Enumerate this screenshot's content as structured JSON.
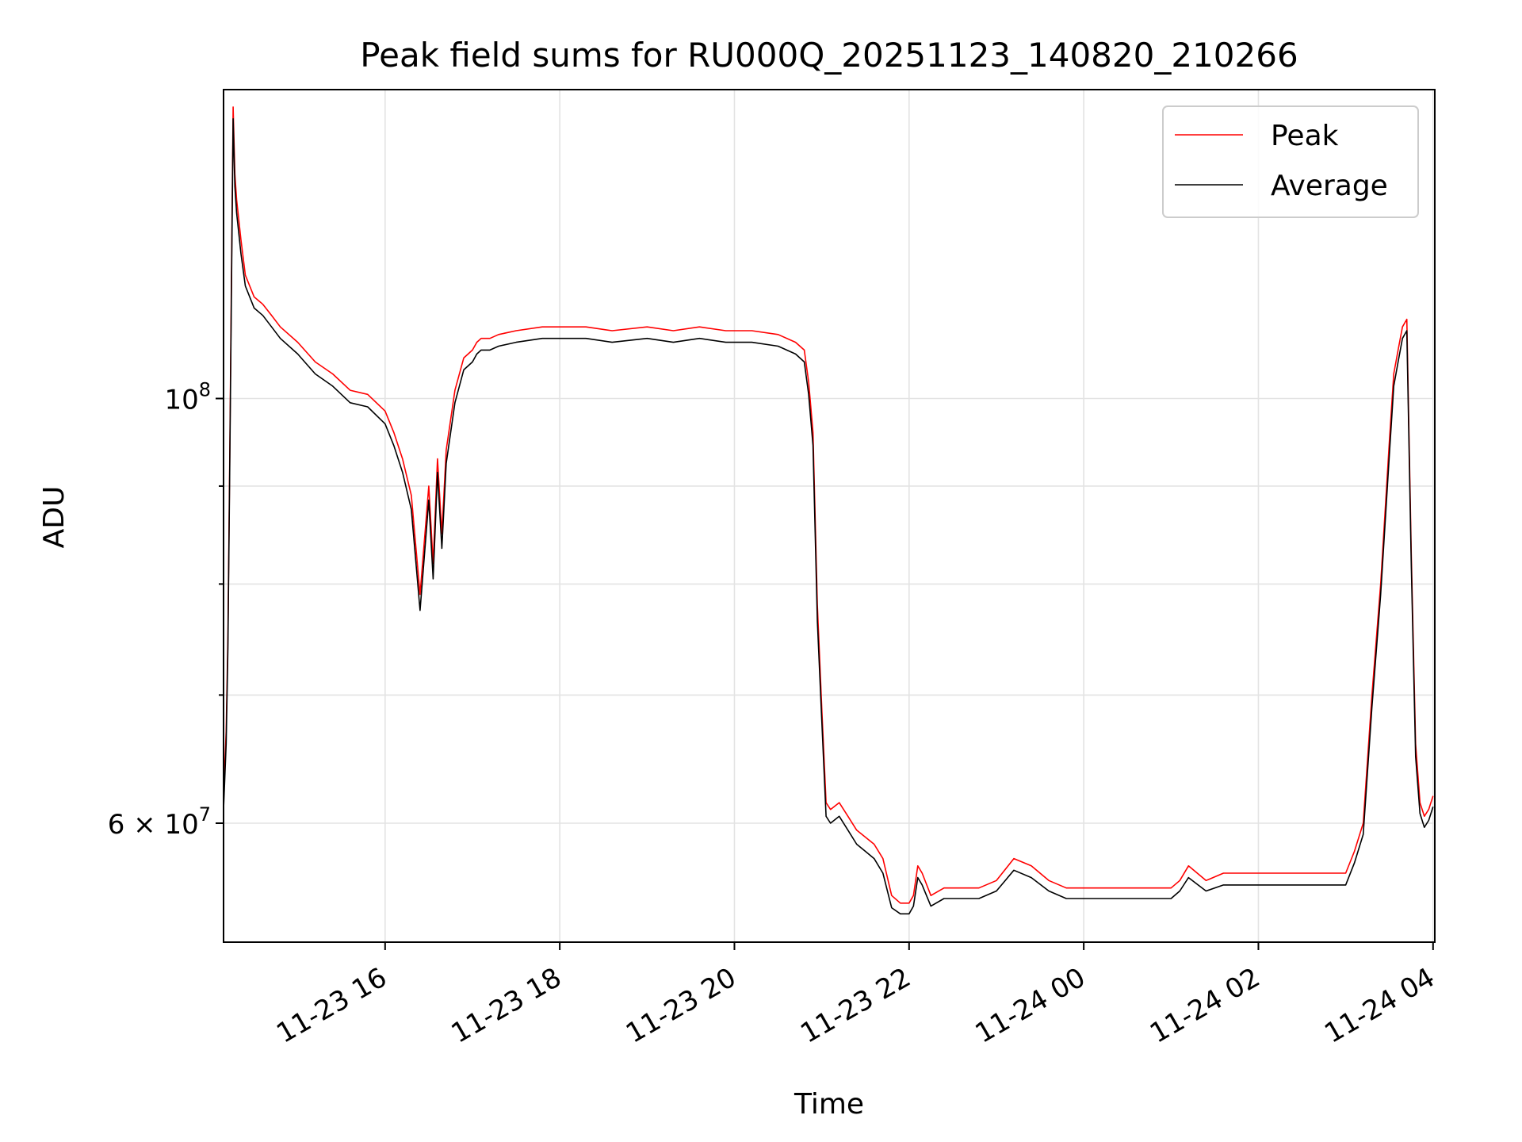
{
  "chart_data": {
    "type": "line",
    "title": "Peak field sums for RU000Q_20251123_140820_210266",
    "xlabel": "Time",
    "ylabel": "ADU",
    "yscale": "log",
    "xlim_hours": [
      -1.85,
      12.02
    ],
    "ylim": [
      52000000,
      145000000
    ],
    "x_units": "hours since 2025-11-23 16:00",
    "x_ticks": [
      {
        "value": 0,
        "label": "11-23 16"
      },
      {
        "value": 2,
        "label": "11-23 18"
      },
      {
        "value": 4,
        "label": "11-23 20"
      },
      {
        "value": 6,
        "label": "11-23 22"
      },
      {
        "value": 8,
        "label": "11-24 00"
      },
      {
        "value": 10,
        "label": "11-24 02"
      },
      {
        "value": 12,
        "label": "11-24 04"
      }
    ],
    "y_major_ticks": [
      {
        "value": 60000000,
        "base": "6",
        "mult": "×",
        "exp_base": "10",
        "exp": "7"
      },
      {
        "value": 100000000,
        "base": "",
        "mult": "",
        "exp_base": "10",
        "exp": "8"
      }
    ],
    "y_minor_ticks": [
      70000000,
      80000000,
      90000000
    ],
    "grid": true,
    "legend_position": "top-right",
    "series": [
      {
        "name": "Peak",
        "color": "#ff0000",
        "x": [
          -1.85,
          -1.82,
          -1.8,
          -1.78,
          -1.76,
          -1.74,
          -1.72,
          -1.7,
          -1.65,
          -1.6,
          -1.5,
          -1.4,
          -1.3,
          -1.2,
          -1.0,
          -0.8,
          -0.6,
          -0.4,
          -0.2,
          0.0,
          0.1,
          0.2,
          0.3,
          0.4,
          0.5,
          0.55,
          0.6,
          0.65,
          0.7,
          0.8,
          0.9,
          1.0,
          1.05,
          1.1,
          1.2,
          1.3,
          1.5,
          1.8,
          2.0,
          2.3,
          2.6,
          3.0,
          3.3,
          3.6,
          3.9,
          4.2,
          4.5,
          4.7,
          4.8,
          4.85,
          4.9,
          4.95,
          5.0,
          5.05,
          5.1,
          5.2,
          5.3,
          5.4,
          5.5,
          5.6,
          5.7,
          5.8,
          5.9,
          6.0,
          6.05,
          6.1,
          6.15,
          6.25,
          6.4,
          6.6,
          6.8,
          7.0,
          7.2,
          7.4,
          7.6,
          7.8,
          8.0,
          8.2,
          8.4,
          8.6,
          8.8,
          9.0,
          9.1,
          9.2,
          9.4,
          9.6,
          9.8,
          10.0,
          10.2,
          10.4,
          10.6,
          10.8,
          11.0,
          11.1,
          11.2,
          11.3,
          11.4,
          11.5,
          11.55,
          11.6,
          11.65,
          11.7,
          11.75,
          11.8,
          11.85,
          11.9,
          11.95,
          12.0
        ],
        "y": [
          62000000,
          67000000,
          75000000,
          92000000,
          115000000,
          142000000,
          131000000,
          127000000,
          121000000,
          116000000,
          113000000,
          112000000,
          110500000,
          109000000,
          107000000,
          104500000,
          103000000,
          101000000,
          100500000,
          98500000,
          96000000,
          93000000,
          89000000,
          79000000,
          90000000,
          82000000,
          93000000,
          85000000,
          94000000,
          101000000,
          105000000,
          106000000,
          107000000,
          107500000,
          107500000,
          108000000,
          108500000,
          109000000,
          109000000,
          109000000,
          108500000,
          109000000,
          108500000,
          109000000,
          108500000,
          108500000,
          108000000,
          107000000,
          106000000,
          102000000,
          96000000,
          78000000,
          69000000,
          61500000,
          61000000,
          61500000,
          60500000,
          59500000,
          59000000,
          58500000,
          57500000,
          55000000,
          54500000,
          54500000,
          55000000,
          57000000,
          56500000,
          55000000,
          55500000,
          55500000,
          55500000,
          56000000,
          57500000,
          57000000,
          56000000,
          55500000,
          55500000,
          55500000,
          55500000,
          55500000,
          55500000,
          55500000,
          56000000,
          57000000,
          56000000,
          56500000,
          56500000,
          56500000,
          56500000,
          56500000,
          56500000,
          56500000,
          56500000,
          58000000,
          60000000,
          70000000,
          80000000,
          95000000,
          103000000,
          106000000,
          109000000,
          110000000,
          83000000,
          66000000,
          61500000,
          60500000,
          61000000,
          62000000
        ]
      },
      {
        "name": "Average",
        "color": "#000000",
        "x": [
          -1.85,
          -1.82,
          -1.8,
          -1.78,
          -1.76,
          -1.74,
          -1.72,
          -1.7,
          -1.65,
          -1.6,
          -1.5,
          -1.4,
          -1.3,
          -1.2,
          -1.0,
          -0.8,
          -0.6,
          -0.4,
          -0.2,
          0.0,
          0.1,
          0.2,
          0.3,
          0.4,
          0.5,
          0.55,
          0.6,
          0.65,
          0.7,
          0.8,
          0.9,
          1.0,
          1.05,
          1.1,
          1.2,
          1.3,
          1.5,
          1.8,
          2.0,
          2.3,
          2.6,
          3.0,
          3.3,
          3.6,
          3.9,
          4.2,
          4.5,
          4.7,
          4.8,
          4.85,
          4.9,
          4.95,
          5.0,
          5.05,
          5.1,
          5.2,
          5.3,
          5.4,
          5.5,
          5.6,
          5.7,
          5.8,
          5.9,
          6.0,
          6.05,
          6.1,
          6.15,
          6.25,
          6.4,
          6.6,
          6.8,
          7.0,
          7.2,
          7.4,
          7.6,
          7.8,
          8.0,
          8.2,
          8.4,
          8.6,
          8.8,
          9.0,
          9.1,
          9.2,
          9.4,
          9.6,
          9.8,
          10.0,
          10.2,
          10.4,
          10.6,
          10.8,
          11.0,
          11.1,
          11.2,
          11.3,
          11.4,
          11.5,
          11.55,
          11.6,
          11.65,
          11.7,
          11.75,
          11.8,
          11.85,
          11.9,
          11.95,
          12.0
        ],
        "y": [
          61000000,
          66000000,
          74000000,
          91000000,
          113000000,
          140000000,
          129000000,
          125000000,
          119000000,
          114500000,
          111500000,
          110500000,
          109000000,
          107500000,
          105500000,
          103000000,
          101500000,
          99500000,
          99000000,
          97000000,
          94500000,
          91500000,
          87500000,
          77500000,
          88500000,
          80500000,
          91500000,
          83500000,
          92500000,
          99500000,
          103500000,
          104500000,
          105500000,
          106000000,
          106000000,
          106500000,
          107000000,
          107500000,
          107500000,
          107500000,
          107000000,
          107500000,
          107000000,
          107500000,
          107000000,
          107000000,
          106500000,
          105500000,
          104500000,
          100500000,
          94500000,
          76500000,
          68000000,
          60500000,
          60000000,
          60500000,
          59500000,
          58500000,
          58000000,
          57500000,
          56500000,
          54200000,
          53800000,
          53800000,
          54300000,
          56200000,
          55700000,
          54300000,
          54800000,
          54800000,
          54800000,
          55300000,
          56700000,
          56200000,
          55300000,
          54800000,
          54800000,
          54800000,
          54800000,
          54800000,
          54800000,
          54800000,
          55300000,
          56200000,
          55300000,
          55700000,
          55700000,
          55700000,
          55700000,
          55700000,
          55700000,
          55700000,
          55700000,
          57200000,
          59200000,
          69000000,
          79000000,
          93500000,
          101500000,
          104500000,
          107500000,
          108500000,
          82000000,
          65000000,
          60700000,
          59700000,
          60200000,
          61200000
        ]
      }
    ]
  }
}
